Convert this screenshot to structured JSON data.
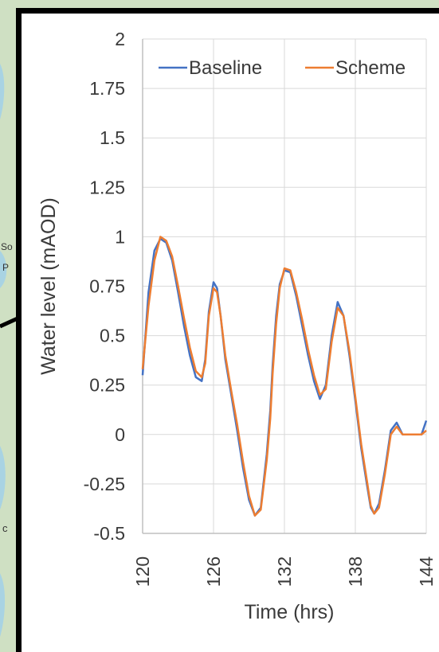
{
  "colors": {
    "baseline": "#4472C4",
    "scheme": "#ED7D31",
    "grid": "#d9d9d9",
    "axis": "#bfbfbf",
    "text": "#3a3a3a",
    "map_background": "#cfe0c3",
    "map_water": "#a9d3e3"
  },
  "map_labels": [
    "So",
    "P",
    "c"
  ],
  "chart_data": {
    "type": "line",
    "title": "",
    "xlabel": "Time (hrs)",
    "ylabel": "Water level (mAOD)",
    "xlim": [
      120,
      144
    ],
    "ylim": [
      -0.5,
      2
    ],
    "x_ticks": [
      120,
      126,
      132,
      138,
      144
    ],
    "x_tick_labels": [
      "120",
      "126",
      "132",
      "138",
      "144"
    ],
    "y_ticks": [
      -0.5,
      -0.25,
      0,
      0.25,
      0.5,
      0.75,
      1,
      1.25,
      1.5,
      1.75,
      2
    ],
    "y_tick_labels": [
      "-0.5",
      "-0.25",
      "0",
      "0.25",
      "0.5",
      "0.75",
      "1",
      "1.25",
      "1.5",
      "1.75",
      "2"
    ],
    "grid": true,
    "legend": "top-right",
    "series": [
      {
        "name": "Baseline",
        "color": "#4472C4",
        "x": [
          120,
          120.5,
          121,
          121.5,
          122,
          122.5,
          123,
          123.5,
          124,
          124.5,
          125,
          125.3,
          125.6,
          126,
          126.3,
          126.6,
          127,
          127.5,
          128,
          128.5,
          129,
          129.5,
          130,
          130.5,
          130.8,
          131,
          131.3,
          131.6,
          132,
          132.5,
          133,
          133.5,
          134,
          134.5,
          135,
          135.5,
          136,
          136.5,
          137,
          137.5,
          138,
          138.5,
          139,
          139.3,
          139.6,
          140,
          140.5,
          141,
          141.5,
          142,
          142.5,
          143,
          143.3,
          143.6,
          144
        ],
        "y": [
          0.3,
          0.72,
          0.93,
          0.99,
          0.97,
          0.88,
          0.72,
          0.55,
          0.4,
          0.29,
          0.27,
          0.38,
          0.62,
          0.77,
          0.74,
          0.6,
          0.38,
          0.2,
          0.02,
          -0.17,
          -0.33,
          -0.41,
          -0.37,
          -0.1,
          0.12,
          0.35,
          0.6,
          0.76,
          0.83,
          0.82,
          0.7,
          0.55,
          0.4,
          0.27,
          0.18,
          0.25,
          0.5,
          0.67,
          0.6,
          0.4,
          0.17,
          -0.07,
          -0.26,
          -0.37,
          -0.4,
          -0.35,
          -0.18,
          0.02,
          0.06,
          0.0,
          0.0,
          0.0,
          0.0,
          0.0,
          0.07
        ]
      },
      {
        "name": "Scheme",
        "color": "#ED7D31",
        "x": [
          120,
          120.5,
          121,
          121.5,
          122,
          122.5,
          123,
          123.5,
          124,
          124.5,
          125,
          125.3,
          125.6,
          126,
          126.3,
          126.6,
          127,
          127.5,
          128,
          128.5,
          129,
          129.5,
          130,
          130.5,
          130.8,
          131,
          131.3,
          131.6,
          132,
          132.5,
          133,
          133.5,
          134,
          134.5,
          135,
          135.5,
          136,
          136.5,
          137,
          137.5,
          138,
          138.5,
          139,
          139.3,
          139.6,
          140,
          140.5,
          141,
          141.5,
          142,
          142.5,
          143,
          143.3,
          143.6,
          144
        ],
        "y": [
          0.33,
          0.65,
          0.88,
          1.0,
          0.98,
          0.9,
          0.75,
          0.59,
          0.44,
          0.32,
          0.29,
          0.36,
          0.6,
          0.74,
          0.72,
          0.6,
          0.4,
          0.22,
          0.05,
          -0.14,
          -0.31,
          -0.41,
          -0.38,
          -0.13,
          0.08,
          0.31,
          0.56,
          0.74,
          0.84,
          0.83,
          0.72,
          0.58,
          0.43,
          0.3,
          0.2,
          0.23,
          0.47,
          0.64,
          0.6,
          0.42,
          0.19,
          -0.05,
          -0.24,
          -0.36,
          -0.4,
          -0.37,
          -0.2,
          0.0,
          0.04,
          0.0,
          0.0,
          0.0,
          0.0,
          0.0,
          0.02
        ]
      }
    ]
  }
}
